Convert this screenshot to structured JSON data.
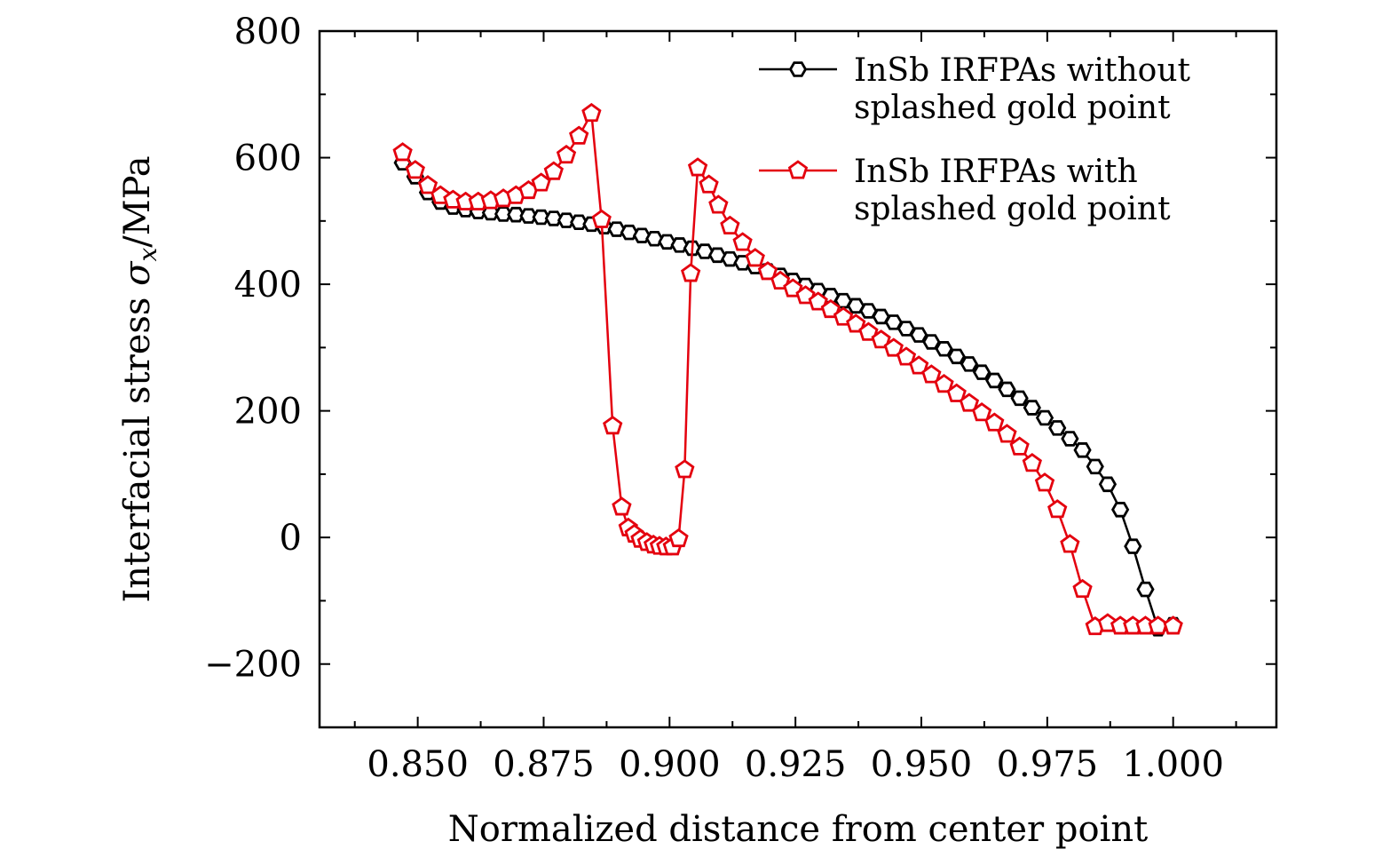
{
  "chart_data": {
    "type": "line",
    "title": "",
    "xlabel": "Normalized distance from center point",
    "ylabel_parts": {
      "prefix": "Interfacial stress ",
      "symbol": "σ",
      "subscript": "x",
      "suffix": "/MPa"
    },
    "xlim": [
      0.8305,
      1.0205
    ],
    "ylim": [
      -300,
      800
    ],
    "xticks": [
      0.85,
      0.875,
      0.9,
      0.925,
      0.95,
      0.975,
      1.0
    ],
    "xtick_labels": [
      "0.850",
      "0.875",
      "0.900",
      "0.925",
      "0.950",
      "0.975",
      "1.000"
    ],
    "yticks": [
      -200,
      0,
      200,
      400,
      600,
      800
    ],
    "ytick_labels": [
      "−200",
      "0",
      "200",
      "400",
      "600",
      "800"
    ],
    "grid": false,
    "legend_position": "top-right",
    "series": [
      {
        "name": "InSb IRFPAs without splashed gold point",
        "legend_lines": [
          "InSb IRFPAs without",
          "splashed gold point"
        ],
        "color": "#000000",
        "marker": "hexagon",
        "x": [
          0.847,
          0.8495,
          0.852,
          0.8545,
          0.857,
          0.8595,
          0.862,
          0.8645,
          0.867,
          0.8695,
          0.872,
          0.8745,
          0.877,
          0.8795,
          0.882,
          0.8845,
          0.887,
          0.8895,
          0.892,
          0.8945,
          0.897,
          0.8995,
          0.902,
          0.9045,
          0.907,
          0.9095,
          0.912,
          0.9145,
          0.917,
          0.9195,
          0.922,
          0.9245,
          0.927,
          0.9295,
          0.932,
          0.9345,
          0.937,
          0.9395,
          0.942,
          0.9445,
          0.947,
          0.9495,
          0.952,
          0.9545,
          0.957,
          0.9595,
          0.962,
          0.9645,
          0.967,
          0.9695,
          0.972,
          0.9745,
          0.977,
          0.9795,
          0.982,
          0.9845,
          0.987,
          0.9895,
          0.992,
          0.9945,
          0.997,
          1.0
        ],
        "y": [
          592,
          570,
          545,
          530,
          522,
          518,
          515,
          513,
          511,
          510,
          508,
          506,
          504,
          501,
          498,
          495,
          491,
          487,
          482,
          477,
          472,
          467,
          462,
          457,
          452,
          446,
          440,
          434,
          428,
          421,
          414,
          406,
          398,
          390,
          382,
          374,
          366,
          358,
          349,
          340,
          330,
          320,
          309,
          298,
          286,
          274,
          261,
          248,
          234,
          220,
          205,
          189,
          173,
          156,
          138,
          112,
          84,
          44,
          -14,
          -82,
          -144,
          -138
        ]
      },
      {
        "name": "InSb IRFPAs with splashed gold point",
        "legend_lines": [
          "InSb IRFPAs with",
          "splashed gold point"
        ],
        "color": "#e4000e",
        "marker": "pentagon",
        "x": [
          0.847,
          0.8495,
          0.852,
          0.8545,
          0.857,
          0.8595,
          0.862,
          0.8645,
          0.867,
          0.8695,
          0.872,
          0.8745,
          0.877,
          0.8795,
          0.882,
          0.8845,
          0.8865,
          0.8887,
          0.8905,
          0.8918,
          0.893,
          0.8942,
          0.8955,
          0.8968,
          0.898,
          0.8993,
          0.9006,
          0.9018,
          0.903,
          0.9042,
          0.9056,
          0.9078,
          0.9097,
          0.912,
          0.9145,
          0.917,
          0.9195,
          0.922,
          0.9245,
          0.927,
          0.9295,
          0.932,
          0.9345,
          0.937,
          0.9395,
          0.942,
          0.9445,
          0.947,
          0.9495,
          0.952,
          0.9545,
          0.957,
          0.9595,
          0.962,
          0.9645,
          0.967,
          0.9695,
          0.972,
          0.9745,
          0.977,
          0.9795,
          0.982,
          0.9845,
          0.987,
          0.9895,
          0.992,
          0.9945,
          0.997,
          1.0
        ],
        "y": [
          608,
          580,
          556,
          540,
          533,
          530,
          530,
          532,
          535,
          540,
          548,
          560,
          578,
          604,
          634,
          670,
          502,
          176,
          48,
          15,
          5,
          -3,
          -8,
          -12,
          -14,
          -15,
          -15,
          -2,
          107,
          417,
          584,
          557,
          525,
          492,
          466,
          441,
          420,
          405,
          393,
          382,
          372,
          360,
          348,
          337,
          324,
          312,
          299,
          285,
          271,
          257,
          242,
          227,
          212,
          197,
          181,
          163,
          143,
          117,
          86,
          44,
          -11,
          -82,
          -141,
          -136,
          -140,
          -140,
          -140,
          -140,
          -140
        ]
      }
    ]
  }
}
